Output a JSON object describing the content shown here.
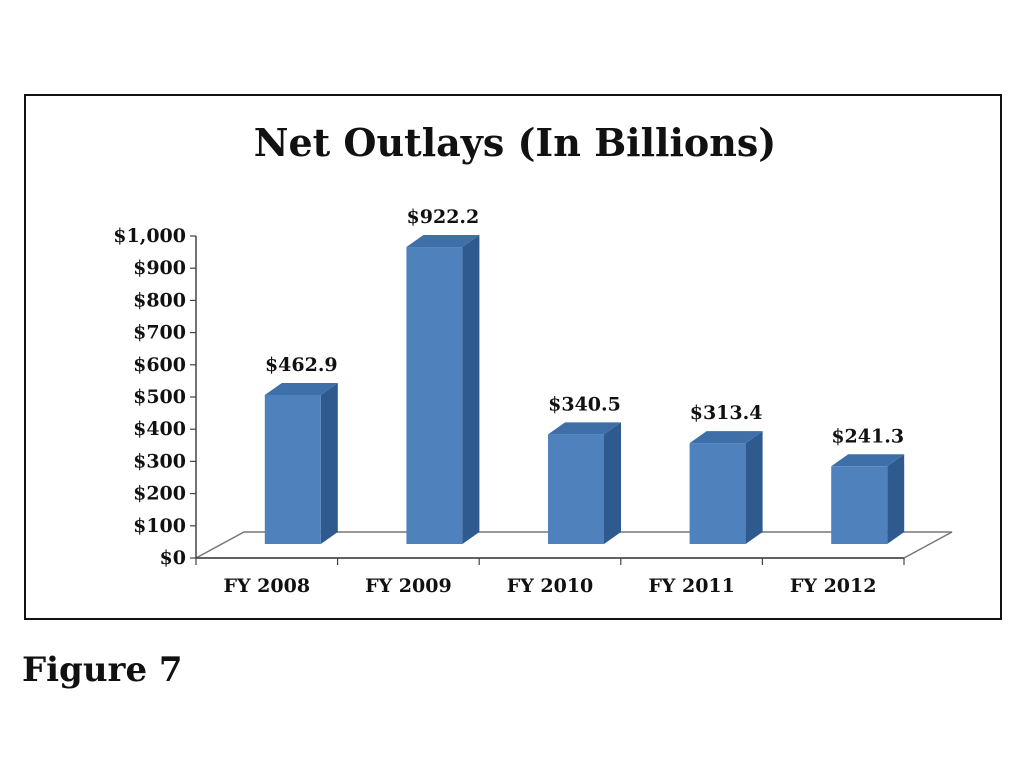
{
  "caption": "Figure 7",
  "colors": {
    "bar_front": "#4F81BD",
    "bar_side": "#2E5A8F",
    "bar_top": "#3F6FA8",
    "floor": "#ffffff",
    "axis": "#444444"
  },
  "chart_data": {
    "type": "bar",
    "title": "Net Outlays (In Billions)",
    "categories": [
      "FY 2008",
      "FY 2009",
      "FY 2010",
      "FY 2011",
      "FY 2012"
    ],
    "values": [
      462.9,
      922.2,
      340.5,
      313.4,
      241.3
    ],
    "data_labels": [
      "$462.9",
      "$922.2",
      "$340.5",
      "$313.4",
      "$241.3"
    ],
    "y_ticks": [
      0,
      100,
      200,
      300,
      400,
      500,
      600,
      700,
      800,
      900,
      1000
    ],
    "y_tick_labels": [
      "$0",
      "$100",
      "$200",
      "$300",
      "$400",
      "$500",
      "$600",
      "$700",
      "$800",
      "$900",
      "$1,000"
    ],
    "xlabel": "",
    "ylabel": "",
    "ylim": [
      0,
      1000
    ],
    "grid": false,
    "legend": "none",
    "style": "3d-column"
  }
}
